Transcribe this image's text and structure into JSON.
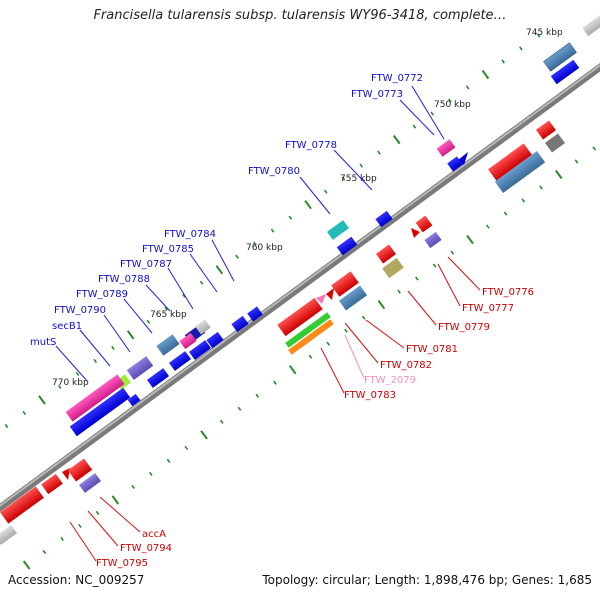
{
  "title": "Francisella tularensis subsp. tularensis WY96-3418, complete…",
  "footer": {
    "accession": "Accession: NC_009257",
    "summary": "Topology: circular; Length: 1,898,476 bp; Genes: 1,685"
  },
  "scale_labels": [
    "745 kbp",
    "750 kbp",
    "755 kbp",
    "760 kbp",
    "765 kbp",
    "770 kbp"
  ],
  "labels_top": [
    "FTW_0772",
    "FTW_0773",
    "FTW_0778",
    "FTW_0780",
    "FTW_0784",
    "FTW_0785",
    "FTW_0787",
    "FTW_0788",
    "FTW_0789",
    "FTW_0790",
    "secB1",
    "mutS"
  ],
  "labels_bottom": [
    "FTW_0776",
    "FTW_0777",
    "FTW_0779",
    "FTW_0781",
    "FTW_0782",
    "FTW_2079",
    "FTW_0783",
    "accA",
    "FTW_0794",
    "FTW_0795"
  ],
  "colors": {
    "backbone": "#888888",
    "label_top": "#1010cc",
    "label_bottom": "#cc0000",
    "label_pseudo": "#f090c0",
    "tick": "#2a8a2a"
  }
}
